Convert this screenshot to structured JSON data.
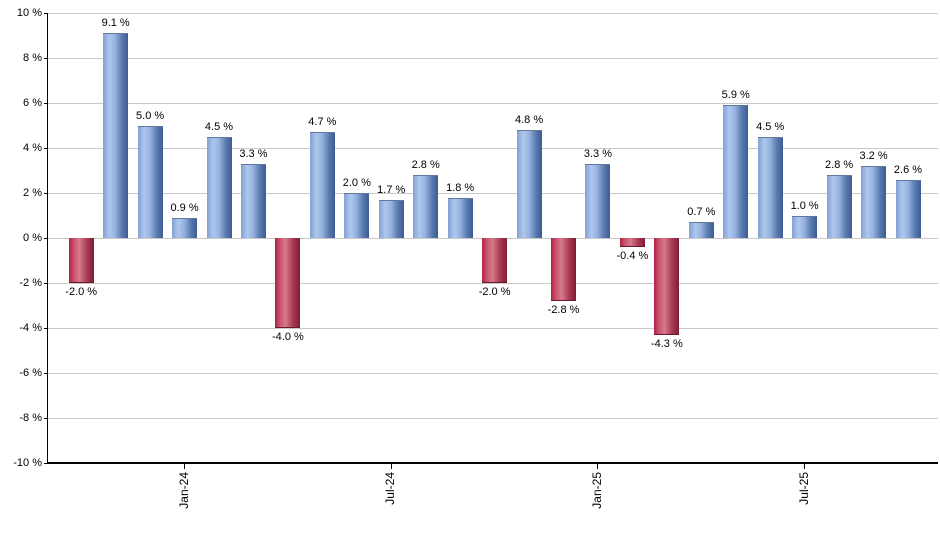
{
  "chart_data": {
    "type": "bar",
    "title": "",
    "xlabel": "",
    "ylabel": "",
    "ylim": [
      -10,
      10
    ],
    "grid": true,
    "values": [
      -2.0,
      9.1,
      5.0,
      0.9,
      4.5,
      3.3,
      -4.0,
      4.7,
      2.0,
      1.7,
      2.8,
      1.8,
      -2.0,
      4.8,
      -2.8,
      3.3,
      -0.4,
      -4.3,
      0.7,
      5.9,
      4.5,
      1.0,
      2.8,
      3.2,
      2.6
    ],
    "value_labels": [
      "-2.0 %",
      "9.1 %",
      "5.0 %",
      "0.9 %",
      "4.5 %",
      "3.3 %",
      "-4.0 %",
      "4.7 %",
      "2.0 %",
      "1.7 %",
      "2.8 %",
      "1.8 %",
      "-2.0 %",
      "4.8 %",
      "-2.8 %",
      "3.3 %",
      "-0.4 %",
      "-4.3 %",
      "0.7 %",
      "5.9 %",
      "4.5 %",
      "1.0 %",
      "2.8 %",
      "3.2 %",
      "2.6 %"
    ],
    "x_ticks": [
      {
        "label": "Jan-24",
        "bar_index": 3
      },
      {
        "label": "Jul-24",
        "bar_index": 9
      },
      {
        "label": "Jan-25",
        "bar_index": 15
      },
      {
        "label": "Jul-25",
        "bar_index": 21
      }
    ],
    "y_ticks": [
      {
        "label": "10 %",
        "value": 10
      },
      {
        "label": "8 %",
        "value": 8
      },
      {
        "label": "6 %",
        "value": 6
      },
      {
        "label": "4 %",
        "value": 4
      },
      {
        "label": "2 %",
        "value": 2
      },
      {
        "label": "0 %",
        "value": 0
      },
      {
        "label": "-2 %",
        "value": -2
      },
      {
        "label": "-4 %",
        "value": -4
      },
      {
        "label": "-6 %",
        "value": -6
      },
      {
        "label": "-8 %",
        "value": -8
      },
      {
        "label": "-10 %",
        "value": -10
      }
    ],
    "colors": {
      "positive_bar": [
        "#84a0d2",
        "#adc7ee",
        "#3d5b91"
      ],
      "negative_bar": [
        "#ad2144",
        "#d57a8b",
        "#7e1c35"
      ],
      "gridline": "#c9c9c9",
      "axis": "#000000",
      "text": "#000000",
      "background": "#ffffff"
    }
  }
}
